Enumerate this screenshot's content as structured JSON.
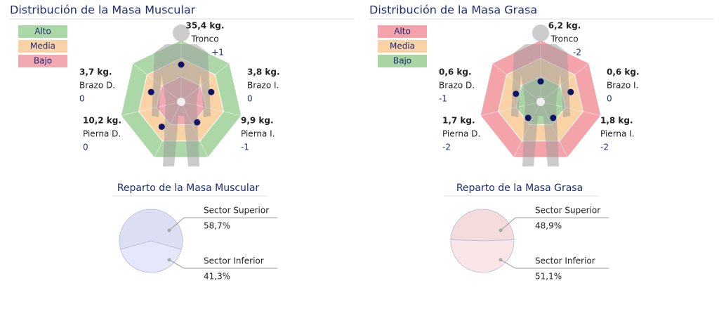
{
  "chart_data": [
    {
      "type": "radar",
      "title": "Distribución de la Masa Muscular",
      "legend": [
        {
          "name": "Alto",
          "color": "#acd7a6"
        },
        {
          "name": "Media",
          "color": "#f9d2a6"
        },
        {
          "name": "Bajo",
          "color": "#f1a8b0"
        }
      ],
      "categories": [
        "Tronco",
        "Brazo I.",
        "Pierna I.",
        "Pierna D.",
        "Brazo D."
      ],
      "value_labels": [
        "35,4 kg.",
        "3,8 kg.",
        "9,9 kg.",
        "10,2 kg.",
        "3,7 kg."
      ],
      "scores": [
        1,
        0,
        -1,
        0,
        0
      ],
      "score_labels": [
        "+1",
        "0",
        "-1",
        "0",
        "0"
      ]
    },
    {
      "type": "radar",
      "title": "Distribución de la Masa Grasa",
      "legend": [
        {
          "name": "Alto",
          "color": "#f4a3aa"
        },
        {
          "name": "Media",
          "color": "#f9d2a6"
        },
        {
          "name": "Bajo",
          "color": "#a9d5a3"
        }
      ],
      "categories": [
        "Tronco",
        "Brazo I.",
        "Pierna I.",
        "Pierna D.",
        "Brazo D."
      ],
      "value_labels": [
        "6,2 kg.",
        "0,6 kg.",
        "1,8 kg.",
        "1,7 kg.",
        "0,6 kg."
      ],
      "scores": [
        -2,
        0,
        -2,
        -2,
        -1
      ],
      "score_labels": [
        "-2",
        "0",
        "-2",
        "-2",
        "-1"
      ]
    },
    {
      "type": "pie",
      "title": "Reparto de la Masa Muscular",
      "categories": [
        "Sector Superior",
        "Sector Inferior"
      ],
      "values": [
        58.7,
        41.3
      ],
      "value_labels": [
        "58,7%",
        "41,3%"
      ],
      "colors": [
        "#dcdef4",
        "#e5e8fb"
      ]
    },
    {
      "type": "pie",
      "title": "Reparto de la Masa Grasa",
      "categories": [
        "Sector Superior",
        "Sector Inferior"
      ],
      "values": [
        48.9,
        51.1
      ],
      "value_labels": [
        "48,9%",
        "51,1%"
      ],
      "colors": [
        "#f4dcdc",
        "#fae6e6"
      ]
    }
  ]
}
